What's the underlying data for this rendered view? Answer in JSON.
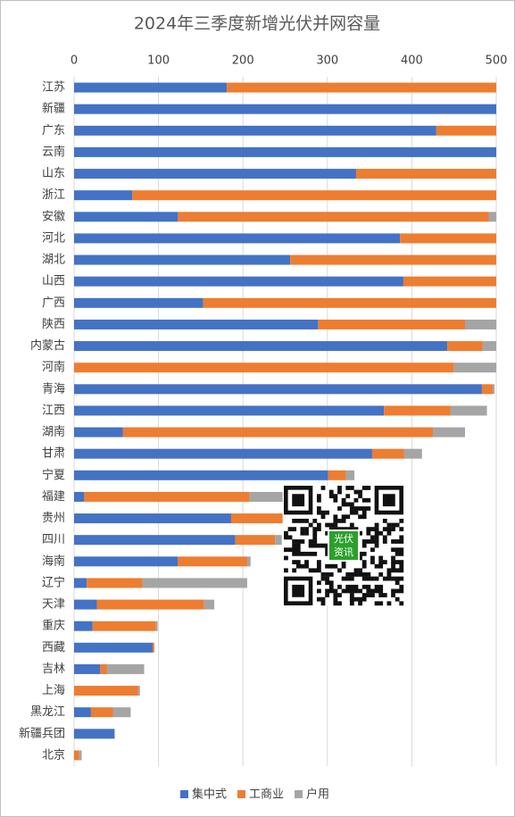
{
  "chart_data": {
    "type": "stacked-bar",
    "orientation": "horizontal",
    "title": "2024年三季度新增光伏并网容量",
    "categories": [
      "江苏",
      "新疆",
      "广东",
      "云南",
      "山东",
      "浙江",
      "安徽",
      "河北",
      "湖北",
      "山西",
      "广西",
      "陕西",
      "内蒙古",
      "河南",
      "青海",
      "江西",
      "湖南",
      "甘肃",
      "宁夏",
      "福建",
      "贵州",
      "四川",
      "海南",
      "辽宁",
      "天津",
      "重庆",
      "西藏",
      "吉林",
      "上海",
      "黑龙江",
      "新疆兵团",
      "北京"
    ],
    "series": [
      {
        "name": "集中式",
        "color": "#4472c4",
        "values": [
          181,
          500,
          429,
          500,
          334,
          69,
          123,
          386,
          256,
          390,
          153,
          289,
          442,
          0,
          483,
          367,
          58,
          353,
          301,
          12,
          186,
          191,
          123,
          15,
          27,
          22,
          93,
          31,
          0,
          20,
          48,
          0
        ]
      },
      {
        "name": "工商业",
        "color": "#ed7d31",
        "values": [
          319,
          0,
          71,
          0,
          166,
          431,
          368,
          114,
          244,
          110,
          347,
          174,
          42,
          450,
          13,
          79,
          367,
          38,
          21,
          196,
          61,
          47,
          82,
          66,
          127,
          75,
          2,
          8,
          76,
          26,
          0,
          6
        ]
      },
      {
        "name": "户用",
        "color": "#a5a5a5",
        "values": [
          0,
          0,
          0,
          0,
          0,
          0,
          9,
          0,
          0,
          0,
          0,
          37,
          16,
          50,
          2,
          43,
          38,
          21,
          10,
          39,
          0,
          8,
          4,
          124,
          12,
          2,
          0,
          44,
          2,
          21,
          0,
          3
        ]
      }
    ],
    "xlim": [
      0,
      500
    ],
    "xticks": [
      0,
      100,
      200,
      300,
      400,
      500
    ],
    "grid": true,
    "legend": "bottom",
    "annotations": [
      "光伏",
      "资讯"
    ]
  }
}
